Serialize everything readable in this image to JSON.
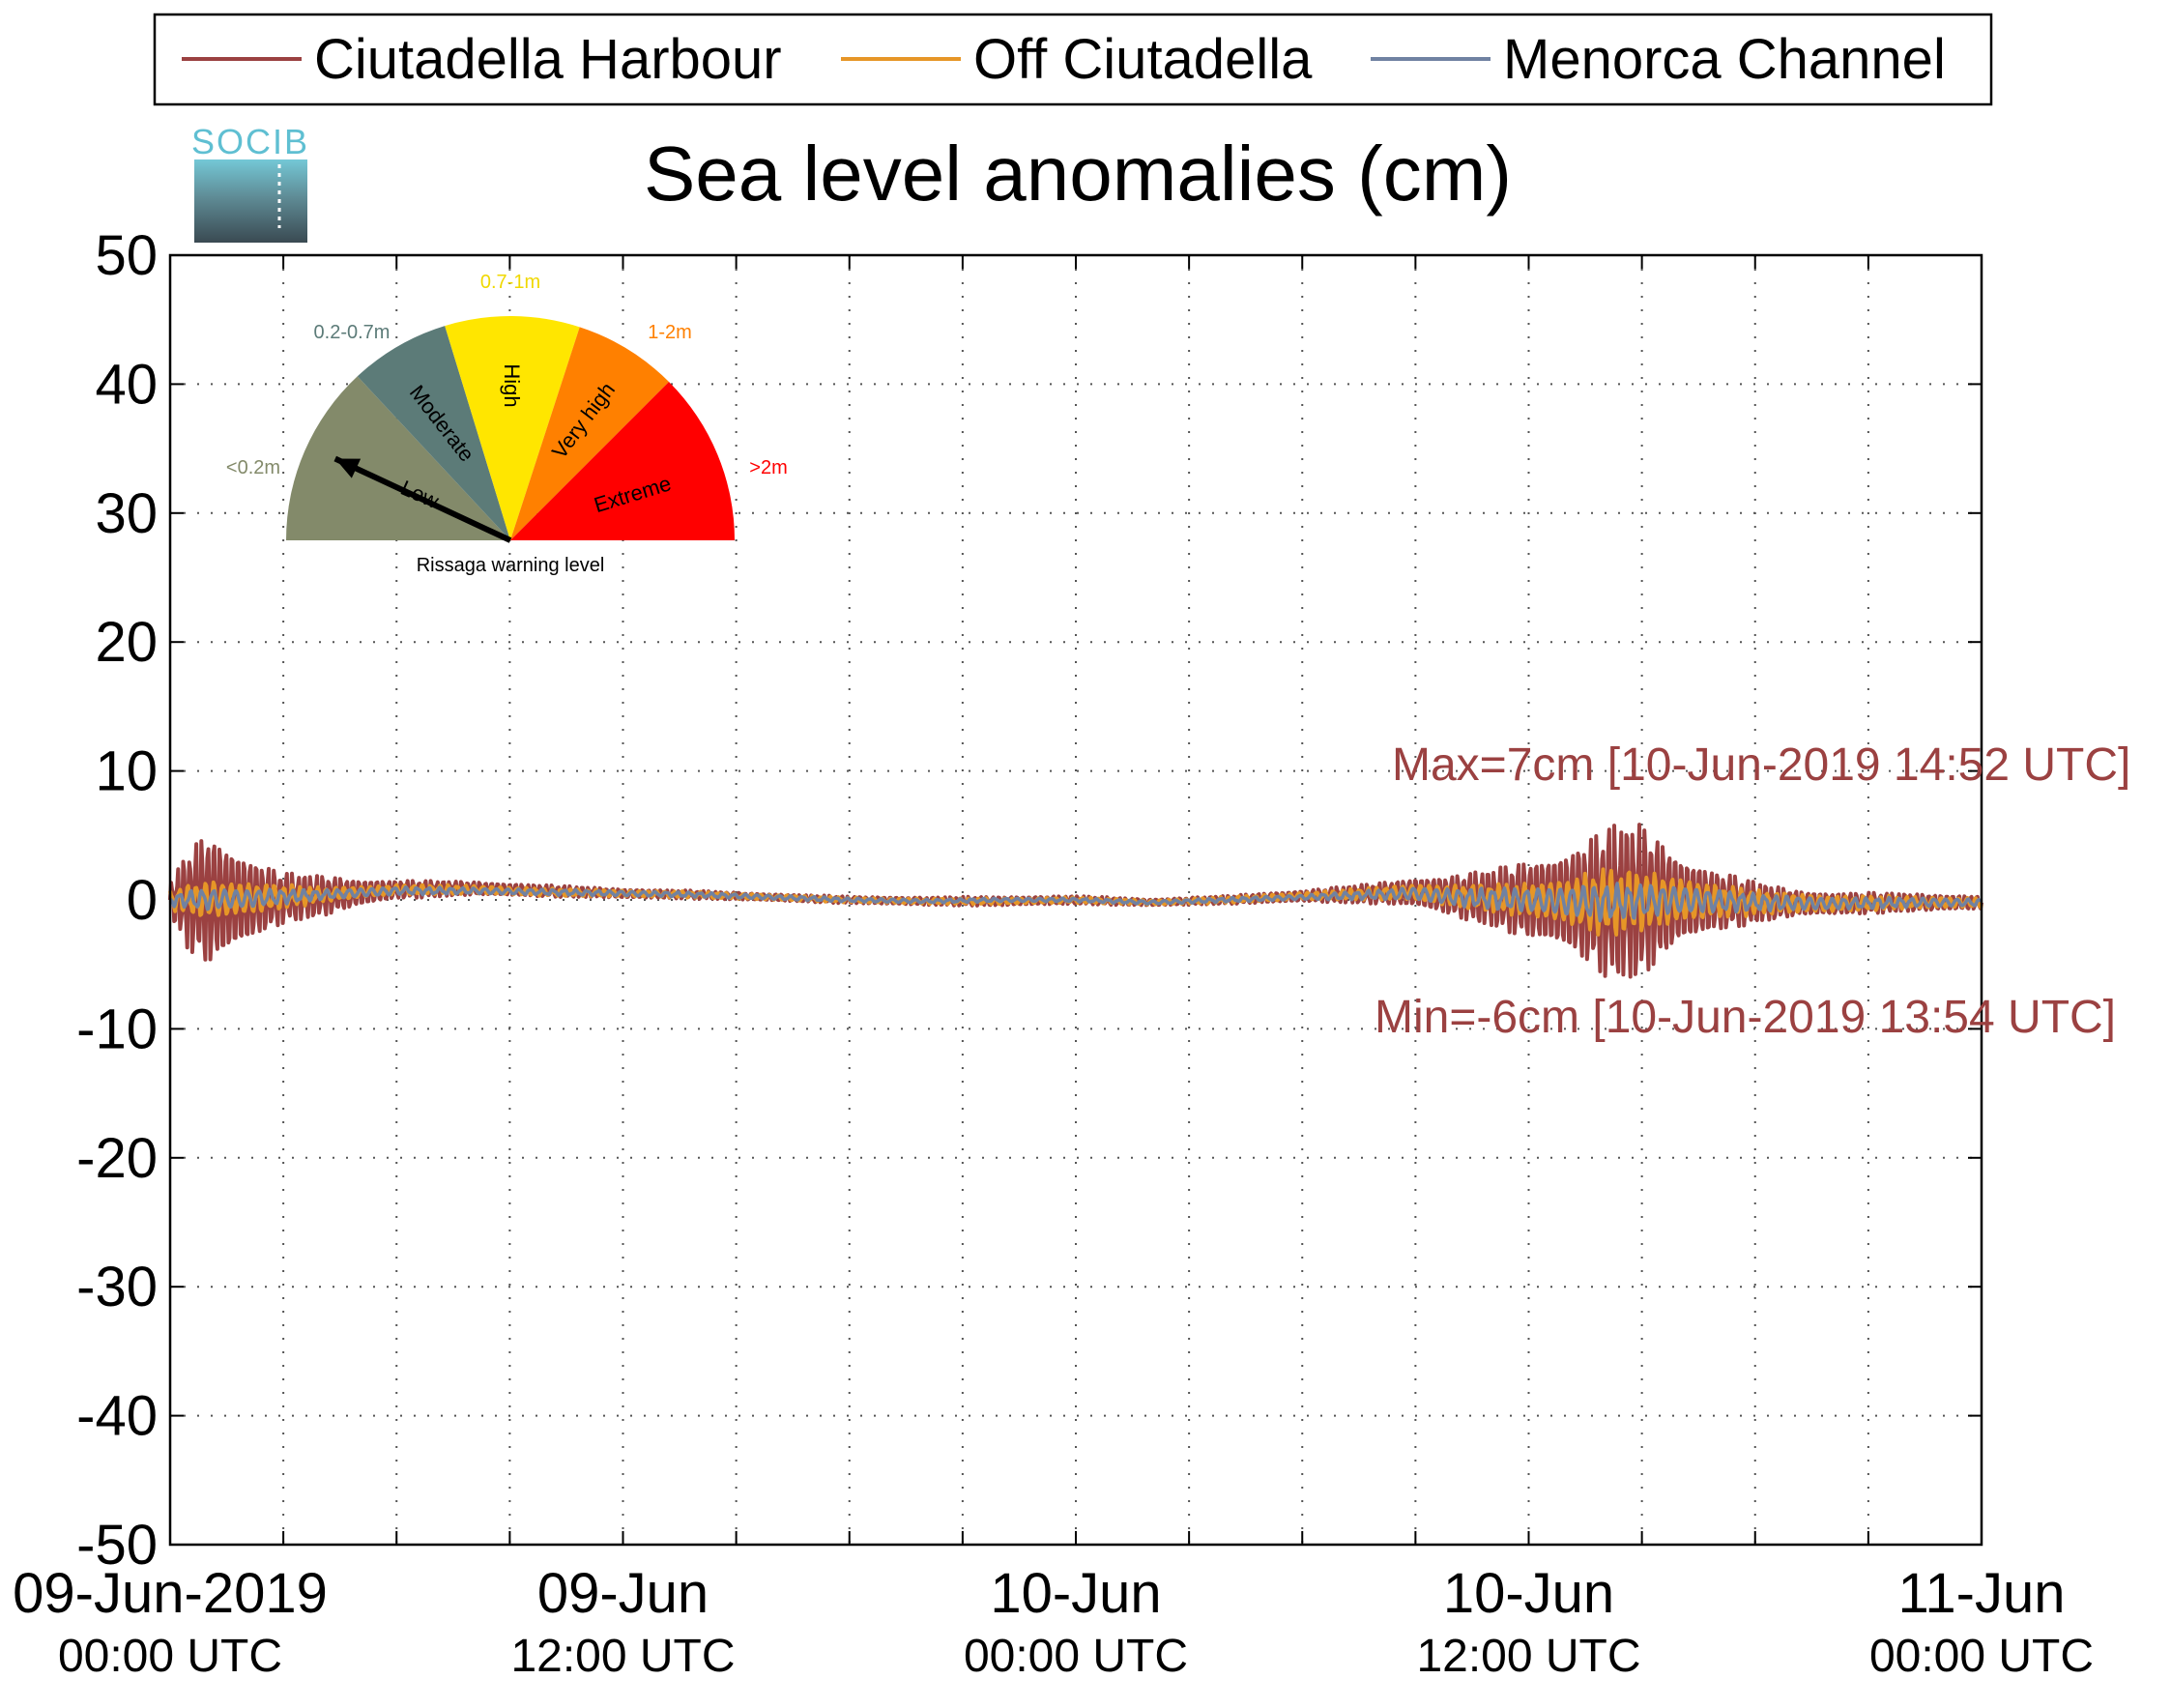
{
  "chart_data": {
    "type": "line",
    "title": "Sea level anomalies (cm)",
    "xlabel": "",
    "ylabel": "",
    "ylim": [
      -50,
      50
    ],
    "yticks": [
      50,
      40,
      30,
      20,
      10,
      0,
      -10,
      -20,
      -30,
      -40,
      -50
    ],
    "y_tick_labels": [
      "50",
      "40",
      "30",
      "20",
      "10",
      "0",
      "-10",
      "-20",
      "-30",
      "-40",
      "-50"
    ],
    "xlim_hours": [
      0,
      48
    ],
    "x_minor_tick_hours": [
      3,
      6,
      9,
      12,
      15,
      18,
      21,
      24,
      27,
      30,
      33,
      36,
      39,
      42,
      45
    ],
    "x_tick_labels": [
      {
        "hour": 0,
        "date": "09-Jun-2019",
        "time": "00:00 UTC"
      },
      {
        "hour": 12,
        "date": "09-Jun",
        "time": "12:00 UTC"
      },
      {
        "hour": 24,
        "date": "10-Jun",
        "time": "00:00 UTC"
      },
      {
        "hour": 36,
        "date": "10-Jun",
        "time": "12:00 UTC"
      },
      {
        "hour": 48,
        "date": "11-Jun",
        "time": "00:00 UTC"
      }
    ],
    "grid": true,
    "legend_position": "top",
    "series": [
      {
        "name": "Ciutadella Harbour",
        "color": "#9b4141",
        "envelope": [
          [
            0,
            1.5
          ],
          [
            0.5,
            4.5
          ],
          [
            1.0,
            6.0
          ],
          [
            1.5,
            5.0
          ],
          [
            2.0,
            4.0
          ],
          [
            2.5,
            3.0
          ],
          [
            3.0,
            2.2
          ],
          [
            4.0,
            1.8
          ],
          [
            5.0,
            1.2
          ],
          [
            6.0,
            0.8
          ],
          [
            8.0,
            0.6
          ],
          [
            10.0,
            0.5
          ],
          [
            12.0,
            0.4
          ],
          [
            14.0,
            0.35
          ],
          [
            16.0,
            0.3
          ],
          [
            18.0,
            0.3
          ],
          [
            20.0,
            0.35
          ],
          [
            22.0,
            0.4
          ],
          [
            24.0,
            0.35
          ],
          [
            26.0,
            0.3
          ],
          [
            28.0,
            0.35
          ],
          [
            30.0,
            0.5
          ],
          [
            32.0,
            0.9
          ],
          [
            33.0,
            1.3
          ],
          [
            34.0,
            1.8
          ],
          [
            35.0,
            2.5
          ],
          [
            36.0,
            3.5
          ],
          [
            37.0,
            4.5
          ],
          [
            37.8,
            6.0
          ],
          [
            38.2,
            6.8
          ],
          [
            38.9,
            7.0
          ],
          [
            39.5,
            5.5
          ],
          [
            40.0,
            4.0
          ],
          [
            41.0,
            2.6
          ],
          [
            42.0,
            1.8
          ],
          [
            43.0,
            1.2
          ],
          [
            44.0,
            1.0
          ],
          [
            46.0,
            0.8
          ],
          [
            48.0,
            0.6
          ]
        ],
        "baseline": [
          [
            0,
            0
          ],
          [
            2,
            0
          ],
          [
            4,
            0.3
          ],
          [
            6,
            0.8
          ],
          [
            8,
            0.9
          ],
          [
            10,
            0.7
          ],
          [
            12,
            0.5
          ],
          [
            14,
            0.4
          ],
          [
            16,
            0.2
          ],
          [
            18,
            0.0
          ],
          [
            20,
            -0.1
          ],
          [
            22,
            -0.1
          ],
          [
            24,
            0.0
          ],
          [
            26,
            -0.2
          ],
          [
            28,
            0.0
          ],
          [
            30,
            0.3
          ],
          [
            32,
            0.5
          ],
          [
            33,
            0.6
          ],
          [
            34,
            0.3
          ],
          [
            36,
            0.0
          ],
          [
            38,
            -0.2
          ],
          [
            40,
            0.0
          ],
          [
            42,
            -0.2
          ],
          [
            44,
            -0.3
          ],
          [
            46,
            -0.2
          ],
          [
            48,
            -0.2
          ]
        ]
      },
      {
        "name": "Off Ciutadella",
        "color": "#e69627",
        "envelope": [
          [
            0,
            0.8
          ],
          [
            1,
            1.6
          ],
          [
            2,
            1.4
          ],
          [
            3,
            1.0
          ],
          [
            4,
            0.6
          ],
          [
            6,
            0.4
          ],
          [
            10,
            0.3
          ],
          [
            14,
            0.25
          ],
          [
            18,
            0.2
          ],
          [
            22,
            0.25
          ],
          [
            26,
            0.2
          ],
          [
            30,
            0.3
          ],
          [
            32,
            0.5
          ],
          [
            34,
            0.9
          ],
          [
            36,
            1.4
          ],
          [
            37,
            2.0
          ],
          [
            38,
            2.8
          ],
          [
            39,
            2.5
          ],
          [
            40,
            2.0
          ],
          [
            41,
            1.4
          ],
          [
            42,
            1.0
          ],
          [
            44,
            0.7
          ],
          [
            46,
            0.5
          ],
          [
            48,
            0.4
          ]
        ],
        "baseline": [
          [
            0,
            0
          ],
          [
            2,
            0.1
          ],
          [
            4,
            0.4
          ],
          [
            6,
            0.8
          ],
          [
            8,
            0.8
          ],
          [
            10,
            0.6
          ],
          [
            12,
            0.5
          ],
          [
            14,
            0.4
          ],
          [
            16,
            0.2
          ],
          [
            18,
            0.0
          ],
          [
            20,
            -0.1
          ],
          [
            22,
            -0.1
          ],
          [
            24,
            0.0
          ],
          [
            26,
            -0.2
          ],
          [
            28,
            0.0
          ],
          [
            30,
            0.3
          ],
          [
            32,
            0.5
          ],
          [
            33,
            0.6
          ],
          [
            34,
            0.3
          ],
          [
            36,
            0.0
          ],
          [
            38,
            -0.2
          ],
          [
            40,
            0.0
          ],
          [
            42,
            -0.2
          ],
          [
            44,
            -0.3
          ],
          [
            46,
            -0.2
          ],
          [
            48,
            -0.2
          ]
        ]
      },
      {
        "name": "Menorca Channel",
        "color": "#7082a2",
        "envelope": [
          [
            0,
            0.5
          ],
          [
            1,
            0.9
          ],
          [
            2,
            0.8
          ],
          [
            3,
            0.6
          ],
          [
            4,
            0.4
          ],
          [
            8,
            0.25
          ],
          [
            14,
            0.2
          ],
          [
            20,
            0.15
          ],
          [
            26,
            0.15
          ],
          [
            30,
            0.2
          ],
          [
            32,
            0.4
          ],
          [
            34,
            0.7
          ],
          [
            36,
            1.0
          ],
          [
            38,
            1.5
          ],
          [
            39,
            1.4
          ],
          [
            40,
            1.2
          ],
          [
            42,
            0.7
          ],
          [
            44,
            0.5
          ],
          [
            48,
            0.3
          ]
        ],
        "baseline": [
          [
            0,
            0
          ],
          [
            2,
            0.1
          ],
          [
            4,
            0.4
          ],
          [
            6,
            0.7
          ],
          [
            8,
            0.7
          ],
          [
            10,
            0.6
          ],
          [
            12,
            0.5
          ],
          [
            14,
            0.4
          ],
          [
            16,
            0.2
          ],
          [
            18,
            0.0
          ],
          [
            20,
            -0.1
          ],
          [
            22,
            0.0
          ],
          [
            24,
            0.0
          ],
          [
            26,
            -0.2
          ],
          [
            28,
            0.0
          ],
          [
            30,
            0.2
          ],
          [
            32,
            0.4
          ],
          [
            33,
            0.5
          ],
          [
            34,
            0.2
          ],
          [
            36,
            0.0
          ],
          [
            38,
            -0.2
          ],
          [
            40,
            0.0
          ],
          [
            42,
            -0.2
          ],
          [
            44,
            -0.3
          ],
          [
            46,
            -0.2
          ],
          [
            48,
            -0.2
          ]
        ]
      }
    ],
    "annotations": {
      "max_text": "Max=7cm [10-Jun-2019 14:52 UTC]",
      "max_value": 7,
      "max_hour": 38.87,
      "min_text": "Min=-6cm [10-Jun-2019 13:54 UTC]",
      "min_value": -6,
      "min_hour": 37.9,
      "color": "#9b4141"
    }
  },
  "logo": {
    "text": "SOCIB"
  },
  "gauge": {
    "caption": "Rissaga warning level",
    "needle_value_m": 0.1,
    "levels": [
      {
        "name": "Low",
        "range": "<0.2m",
        "color": "#838a6a",
        "range_color": "#838a6a"
      },
      {
        "name": "Moderate",
        "range": "0.2-0.7m",
        "color": "#5c7b78",
        "range_color": "#5c7b78"
      },
      {
        "name": "High",
        "range": "0.7-1m",
        "color": "#ffe600",
        "range_color": "#f0d800"
      },
      {
        "name": "Very high",
        "range": "1-2m",
        "color": "#ff8000",
        "range_color": "#ff8000"
      },
      {
        "name": "Extreme",
        "range": ">2m",
        "color": "#ff0000",
        "range_color": "#ff0000"
      }
    ]
  }
}
